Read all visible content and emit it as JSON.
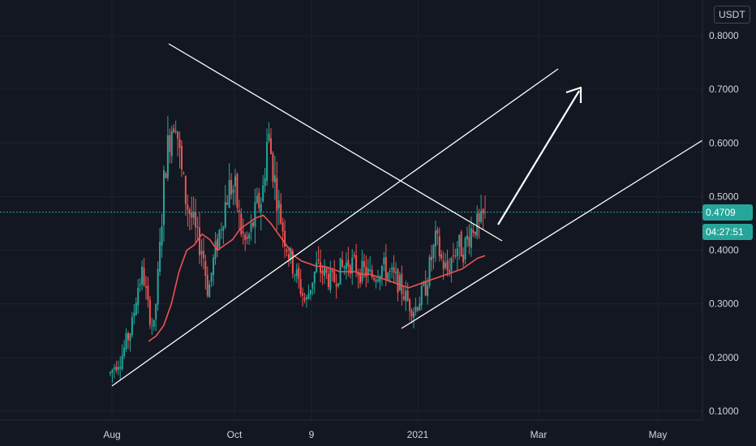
{
  "currency_label": "USDT",
  "last_price_label": "0.4709",
  "countdown_label": "04:27:51",
  "colors": {
    "background": "#131722",
    "grid": "#1e222d",
    "up": "#26a69a",
    "down": "#ef5350",
    "ma": "#ef5350",
    "drawing": "#ffffff",
    "price_line": "#26a69a"
  },
  "chart_data": {
    "type": "candlestick",
    "y_ticks": [
      "0.8000",
      "0.7000",
      "0.6000",
      "0.5000",
      "0.4000",
      "0.3000",
      "0.2000",
      "0.1000"
    ],
    "x_ticks": [
      "Aug",
      "Oct",
      "9",
      "2021",
      "Mar",
      "May"
    ],
    "ylim": [
      0.09,
      0.85
    ],
    "last_price": 0.4709,
    "grid": true,
    "trend_shape": [
      0.17,
      0.19,
      0.2,
      0.23,
      0.26,
      0.33,
      0.36,
      0.29,
      0.25,
      0.38,
      0.55,
      0.62,
      0.66,
      0.55,
      0.49,
      0.46,
      0.42,
      0.4,
      0.32,
      0.38,
      0.43,
      0.48,
      0.52,
      0.51,
      0.44,
      0.41,
      0.44,
      0.48,
      0.5,
      0.62,
      0.55,
      0.48,
      0.43,
      0.39,
      0.36,
      0.33,
      0.3,
      0.34,
      0.37,
      0.36,
      0.35,
      0.34,
      0.36,
      0.37,
      0.38,
      0.37,
      0.36,
      0.36,
      0.35,
      0.36,
      0.37,
      0.36,
      0.35,
      0.34,
      0.32,
      0.3,
      0.29,
      0.31,
      0.33,
      0.38,
      0.42,
      0.38,
      0.36,
      0.39,
      0.41,
      0.4,
      0.43,
      0.45,
      0.44,
      0.47
    ],
    "moving_average": [
      0.23,
      0.24,
      0.26,
      0.3,
      0.36,
      0.4,
      0.41,
      0.43,
      0.42,
      0.4,
      0.41,
      0.42,
      0.44,
      0.45,
      0.46,
      0.465,
      0.45,
      0.43,
      0.41,
      0.39,
      0.38,
      0.375,
      0.37,
      0.37,
      0.365,
      0.36,
      0.36,
      0.36,
      0.355,
      0.355,
      0.35,
      0.345,
      0.34,
      0.335,
      0.33,
      0.335,
      0.34,
      0.345,
      0.35,
      0.355,
      0.36,
      0.365,
      0.375,
      0.385,
      0.39
    ],
    "annotations": {
      "trendlines": [
        {
          "from": [
            "Aug",
            0.148
          ],
          "to": [
            "Oct",
            0.785
          ]
        },
        {
          "from": [
            "Aug",
            0.148
          ],
          "to": [
            "Mar",
            0.74
          ]
        },
        {
          "from": [
            "Jan",
            0.255
          ],
          "to": [
            "May",
            0.605
          ]
        },
        {
          "from": [
            "Aug",
            0.785
          ],
          "to": [
            "Feb",
            0.42
          ]
        }
      ],
      "arrow": {
        "from": 0.465,
        "to": 0.7
      }
    }
  }
}
